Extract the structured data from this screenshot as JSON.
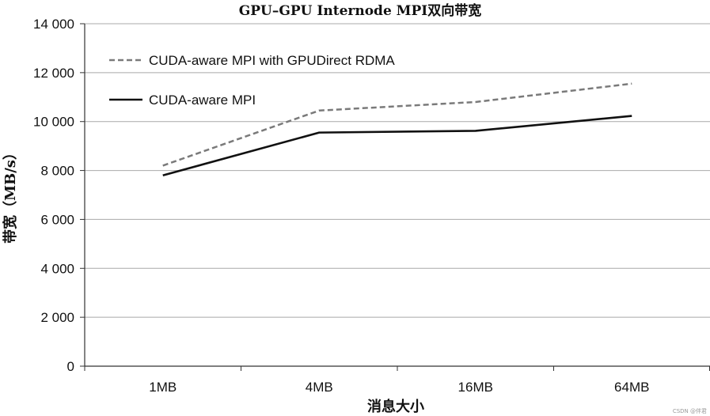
{
  "chart_data": {
    "type": "line",
    "title": "GPU–GPU Internode MPI双向带宽",
    "xlabel": "消息大小",
    "ylabel": "带宽（MB/s）",
    "categories": [
      "1MB",
      "4MB",
      "16MB",
      "64MB"
    ],
    "ylim": [
      0,
      14000
    ],
    "yticks": [
      0,
      2000,
      4000,
      6000,
      8000,
      10000,
      12000,
      14000
    ],
    "ytick_labels": [
      "0",
      "2 000",
      "4 000",
      "6 000",
      "8 000",
      "10 000",
      "12 000",
      "14 000"
    ],
    "grid": "horizontal",
    "legend_position": "top-left",
    "series": [
      {
        "name": "CUDA-aware MPI with GPUDirect RDMA",
        "values": [
          8200,
          10450,
          10800,
          11550
        ],
        "color": "#7a7a7a",
        "style": "dashed"
      },
      {
        "name": "CUDA-aware MPI",
        "values": [
          7800,
          9550,
          9620,
          10230
        ],
        "color": "#111111",
        "style": "solid"
      }
    ]
  },
  "watermark": "CSDN @伴君"
}
